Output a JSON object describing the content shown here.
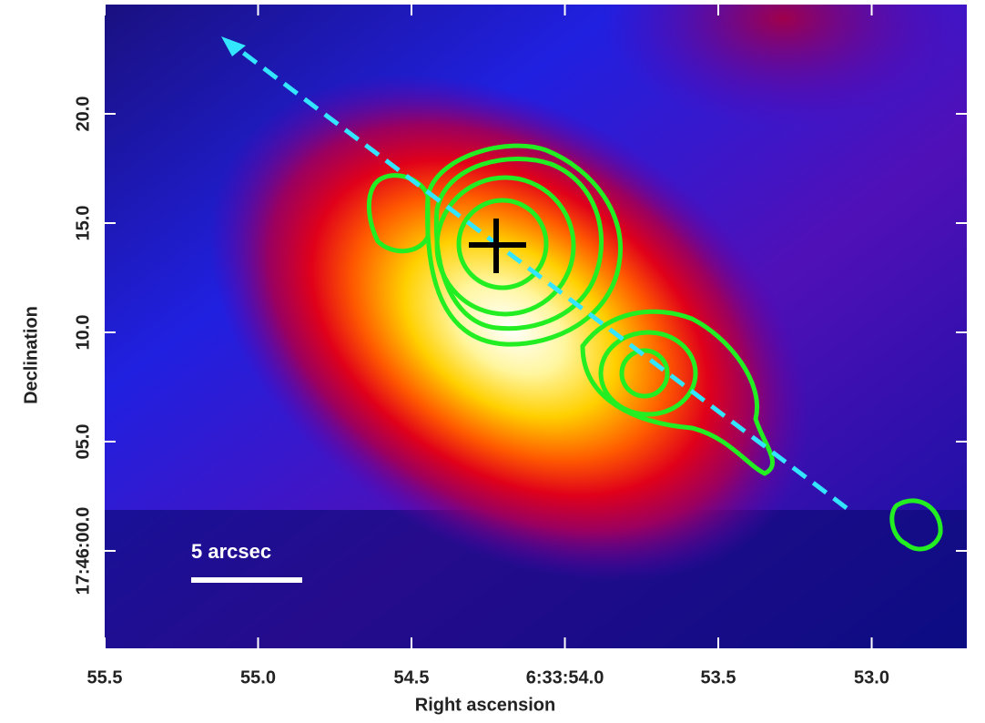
{
  "chart_data": {
    "type": "image",
    "x_label": "Right ascension",
    "y_label": "Declination",
    "xlim": [
      55.5,
      52.69
    ],
    "ylim": [
      -4.46,
      25.0
    ],
    "xticks": [
      55.5,
      {
        "value": 55,
        "label": "55.0"
      },
      54.5,
      {
        "value": 54,
        "label": "6:33:54.0"
      },
      53.5,
      {
        "value": 53,
        "label": "53.0"
      }
    ],
    "yticks": [
      {
        "value": 0,
        "label": "17:46:00.0"
      },
      {
        "value": 5,
        "label": "05.0"
      },
      {
        "value": 10,
        "label": "10.0"
      },
      {
        "value": 15,
        "label": "15.0"
      },
      {
        "value": 20,
        "label": "20.0"
      }
    ],
    "scale_bar_label": "5 arcsec"
  }
}
